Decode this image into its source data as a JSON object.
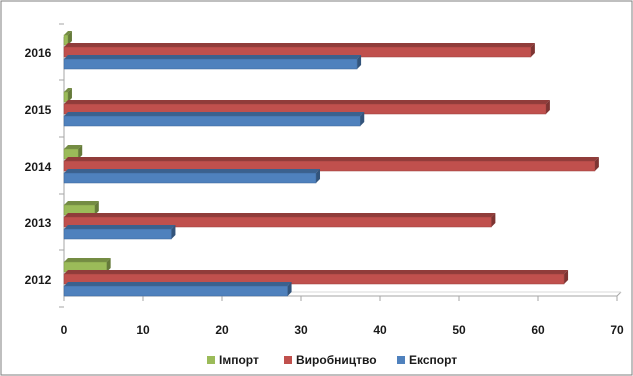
{
  "chart_data": {
    "type": "bar",
    "orientation": "horizontal",
    "style": "3d",
    "title": "",
    "xlabel": "",
    "ylabel": "",
    "categories": [
      "2012",
      "2013",
      "2014",
      "2015",
      "2016"
    ],
    "series": [
      {
        "name": "Імпорт",
        "color": "#9bbb59",
        "values": [
          5.4,
          3.9,
          1.8,
          0.5,
          0.5
        ]
      },
      {
        "name": "Виробництво",
        "color": "#c0504d",
        "values": [
          63.3,
          54.1,
          67.2,
          61.0,
          59.1
        ]
      },
      {
        "name": "Експорт",
        "color": "#4f81bd",
        "values": [
          28.3,
          13.6,
          31.9,
          37.5,
          37.1
        ]
      }
    ],
    "xlim": [
      0,
      70
    ],
    "xticks": [
      "0",
      "10",
      "20",
      "30",
      "40",
      "50",
      "60",
      "70"
    ],
    "grid": false,
    "legend_position": "bottom"
  }
}
